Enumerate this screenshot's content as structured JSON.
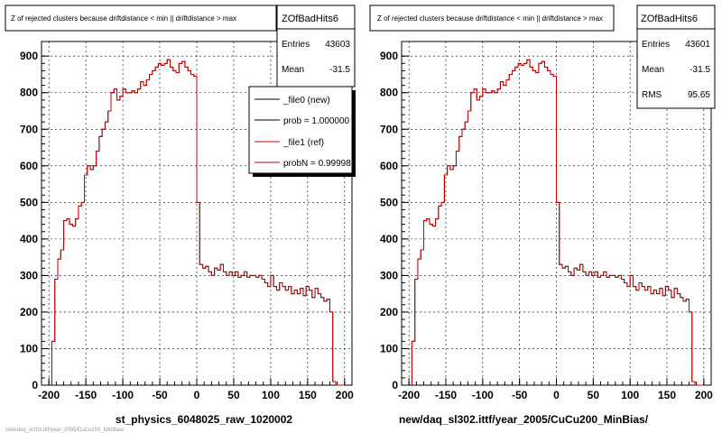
{
  "footer_text": "new/daq_sl302.ittf/year_2005/CuCu200_MinBias/",
  "colors": {
    "hist_new": "#000000",
    "hist_ref": "#cc0000",
    "frame": "#000000",
    "grid": "#000000"
  },
  "panels": [
    {
      "title": "Z of rejected clusters because driftdistance < min || driftdistance > max",
      "stats": {
        "name": "ZOfBadHits6",
        "rows": [
          {
            "label": "Entries",
            "value": "43603"
          },
          {
            "label": "Mean",
            "value": "-31.5"
          }
        ]
      },
      "legend": [
        {
          "label": "_file0 (new)",
          "color": "#000000"
        },
        {
          "label": "prob = 1.000000",
          "color": "#000000"
        },
        {
          "label": "_file1 (ref)",
          "color": "#cc0000"
        },
        {
          "label": "probN = 0.99998",
          "color": "#cc0000"
        }
      ],
      "xlabel": "st_physics_6048025_raw_1020002"
    },
    {
      "title": "Z of rejected clusters because driftdistance < min || driftdistance > max",
      "stats": {
        "name": "ZOfBadHits6",
        "rows": [
          {
            "label": "Entries",
            "value": "43601"
          },
          {
            "label": "Mean",
            "value": "-31.5"
          },
          {
            "label": "RMS",
            "value": "95.65"
          }
        ]
      },
      "legend": [],
      "xlabel": "new/daq_sl302.ittf/year_2005/CuCu200_MinBias/"
    }
  ],
  "chart_data": {
    "type": "line",
    "xlim": [
      -210,
      210
    ],
    "ylim": [
      0,
      940
    ],
    "x_ticks": [
      -200,
      -150,
      -100,
      -50,
      0,
      50,
      100,
      150,
      200
    ],
    "y_ticks": [
      0,
      100,
      200,
      300,
      400,
      500,
      600,
      700,
      800,
      900
    ],
    "grid": true,
    "bin_edges": [
      -196,
      -192,
      -188,
      -184,
      -180,
      -176,
      -172,
      -168,
      -164,
      -160,
      -156,
      -152,
      -148,
      -144,
      -140,
      -136,
      -132,
      -128,
      -124,
      -120,
      -116,
      -112,
      -108,
      -104,
      -100,
      -96,
      -92,
      -88,
      -84,
      -80,
      -76,
      -72,
      -68,
      -64,
      -60,
      -56,
      -52,
      -48,
      -44,
      -40,
      -36,
      -32,
      -28,
      -24,
      -20,
      -16,
      -12,
      -8,
      -4,
      0,
      4,
      8,
      12,
      16,
      20,
      24,
      28,
      32,
      36,
      40,
      44,
      48,
      52,
      56,
      60,
      64,
      68,
      72,
      76,
      80,
      84,
      88,
      92,
      96,
      100,
      104,
      108,
      112,
      116,
      120,
      124,
      128,
      132,
      136,
      140,
      144,
      148,
      152,
      156,
      160,
      164,
      168,
      172,
      176,
      180,
      184,
      188,
      192,
      196,
      200
    ],
    "values": [
      120,
      290,
      345,
      370,
      450,
      455,
      440,
      435,
      455,
      490,
      500,
      575,
      600,
      590,
      600,
      640,
      680,
      700,
      720,
      750,
      800,
      810,
      780,
      790,
      810,
      800,
      800,
      805,
      800,
      810,
      830,
      820,
      835,
      850,
      860,
      870,
      880,
      875,
      880,
      890,
      870,
      860,
      855,
      880,
      885,
      870,
      860,
      850,
      845,
      500,
      330,
      320,
      325,
      310,
      300,
      320,
      315,
      330,
      310,
      300,
      310,
      300,
      310,
      295,
      300,
      310,
      295,
      300,
      300,
      295,
      300,
      290,
      280,
      270,
      300,
      270,
      260,
      280,
      270,
      260,
      270,
      250,
      260,
      250,
      265,
      245,
      270,
      260,
      240,
      265,
      250,
      240,
      230,
      235,
      200,
      10,
      0,
      0,
      0
    ],
    "series": [
      {
        "name": "_file0 (new)",
        "color": "#000000"
      },
      {
        "name": "_file1 (ref)",
        "color": "#cc0000"
      }
    ]
  }
}
